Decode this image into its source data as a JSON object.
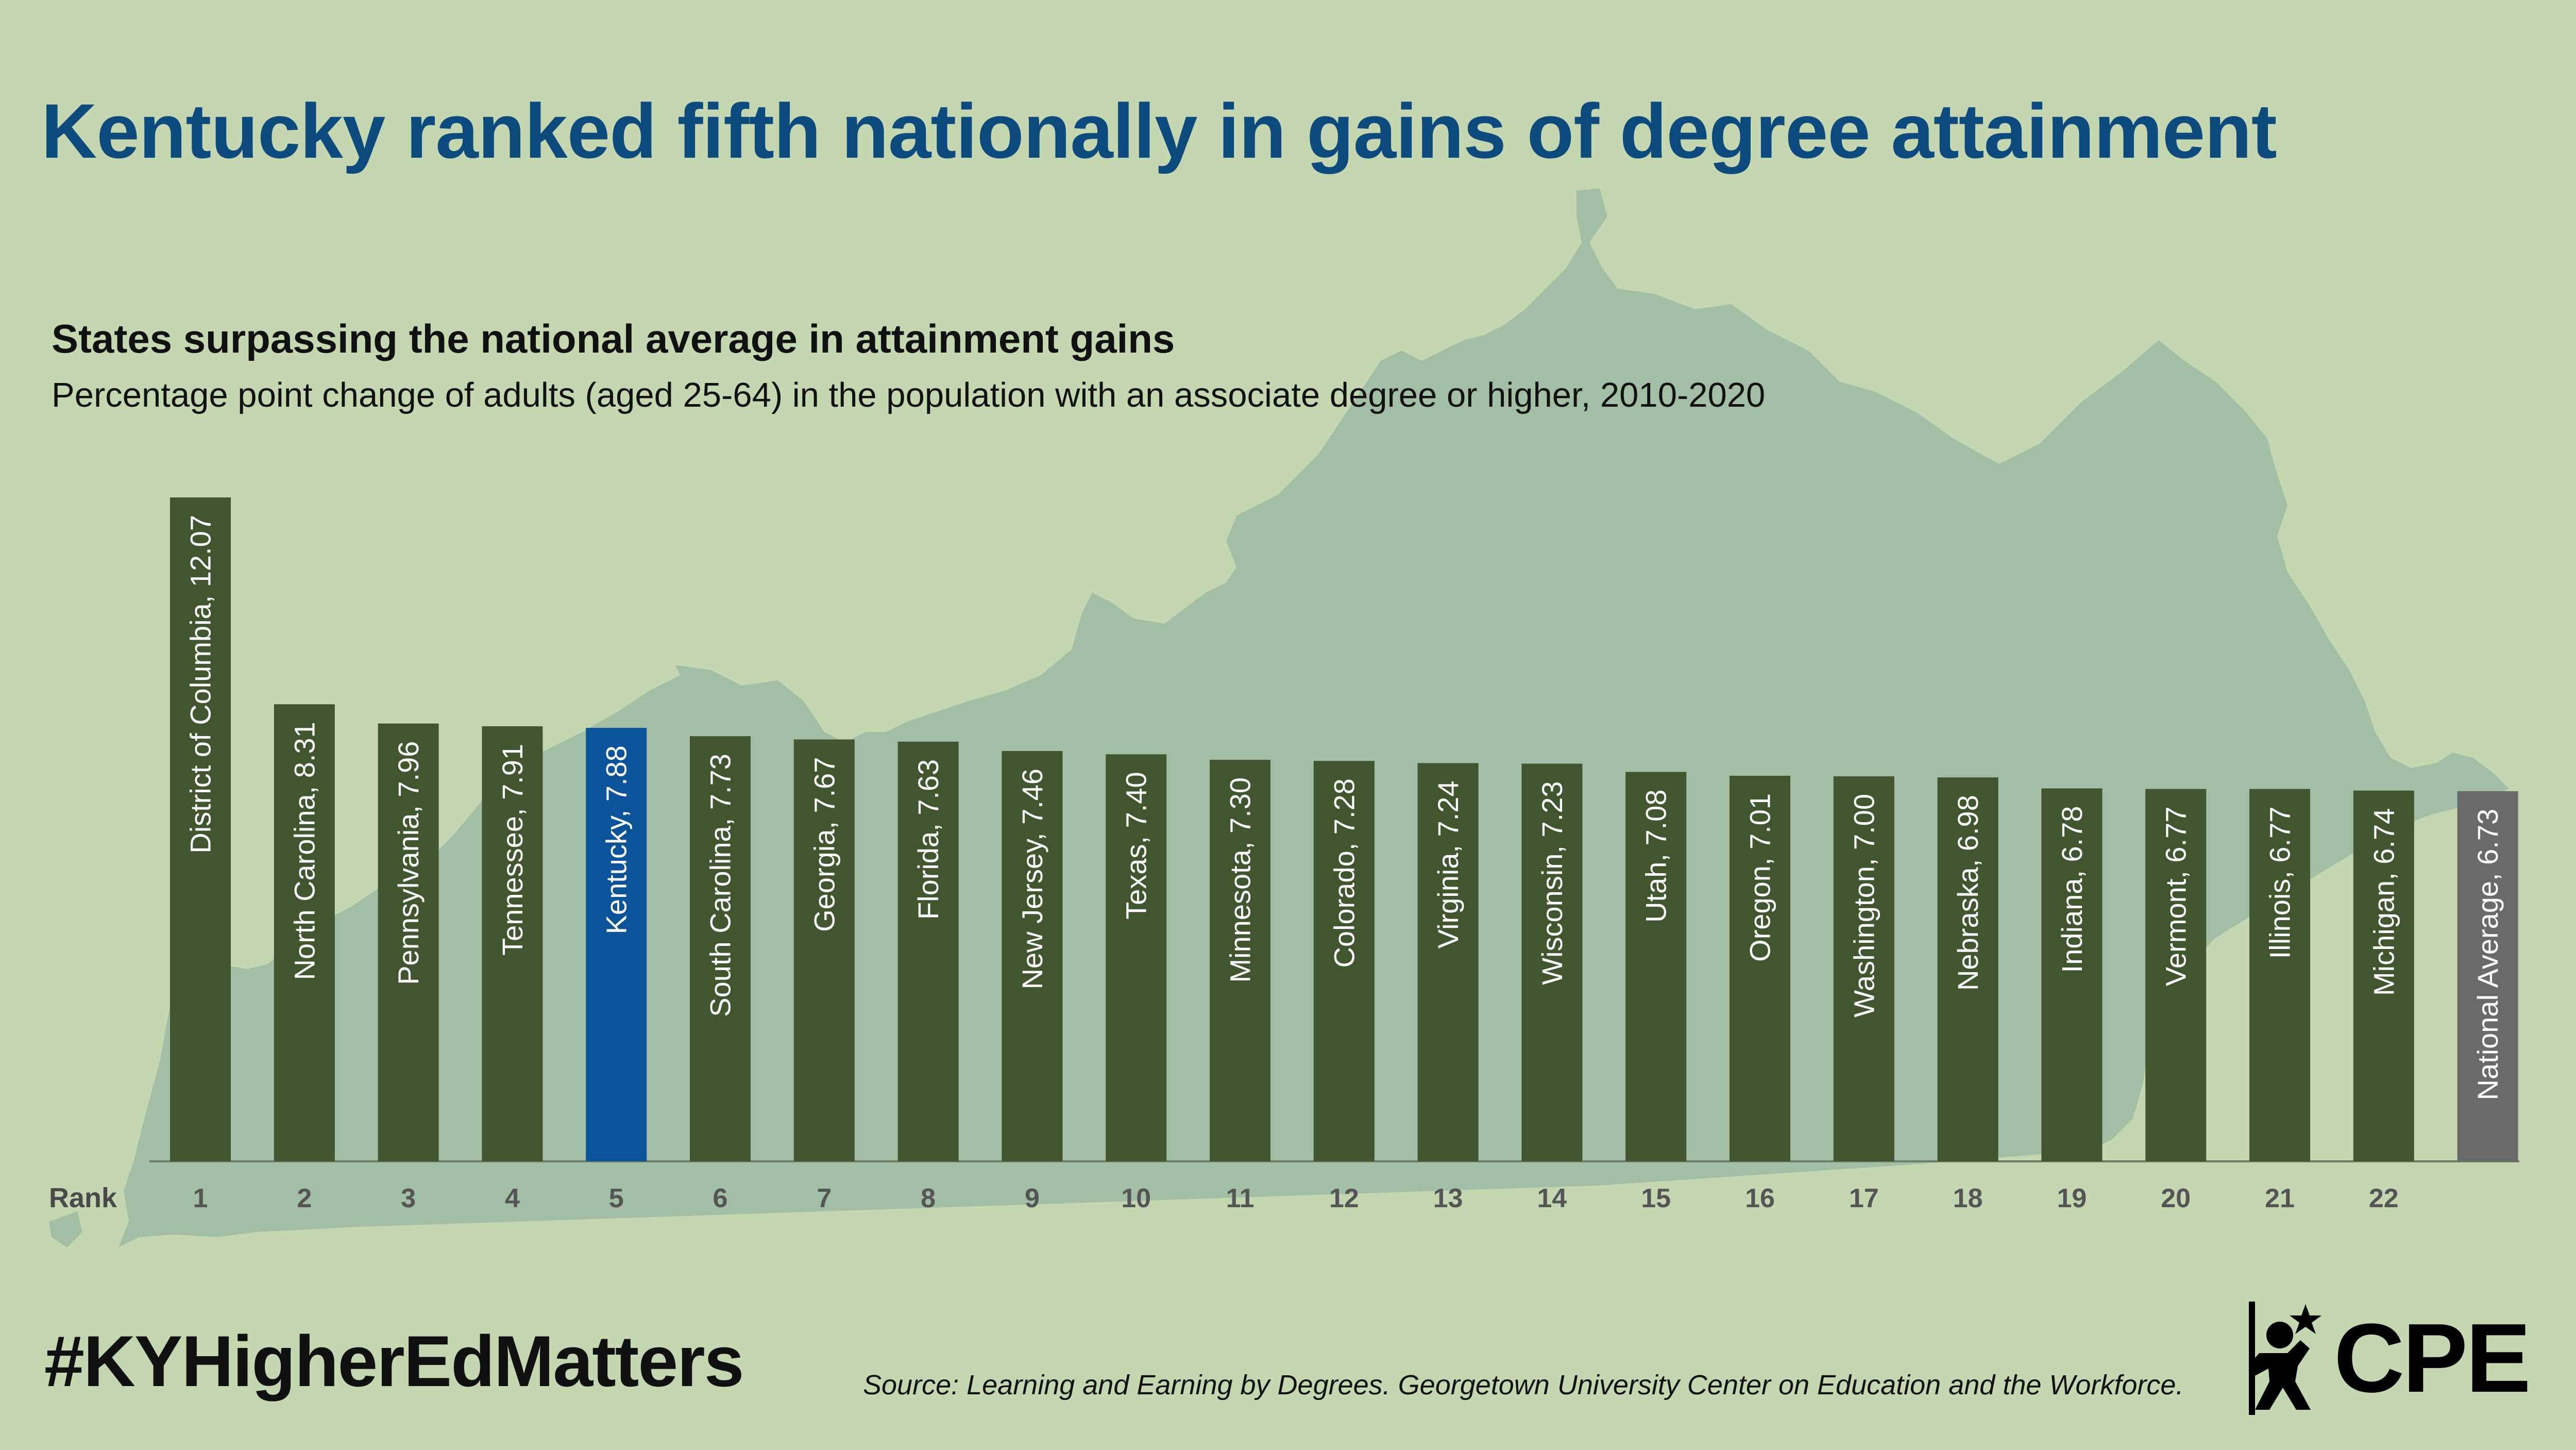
{
  "title": "Kentucky ranked fifth nationally in gains of degree attainment",
  "subtitle": "States surpassing the national average in attainment gains",
  "description": "Percentage point change of adults (aged 25-64) in the population with an associate degree or higher, 2010-2020",
  "hashtag": "#KYHigherEdMatters",
  "source": "Source: Learning and Earning by Degrees. Georgetown University Center on Education and the Workforce.",
  "logo": {
    "text": "CPE",
    "icon": "person-star-icon"
  },
  "colors": {
    "background": "#c4d7b1",
    "state_shape": "#a2bfa6",
    "bar": "#41552f",
    "highlight_bar": "#0b5398",
    "average_bar": "#6a6a6a",
    "title": "#0d4a7d"
  },
  "chart_data": {
    "type": "bar",
    "title": "States surpassing the national average in attainment gains",
    "xlabel": "Rank",
    "ylabel": "",
    "ylim": [
      0,
      12.07
    ],
    "grid": false,
    "highlight": "Kentucky",
    "ranks": [
      "1",
      "2",
      "3",
      "4",
      "5",
      "6",
      "7",
      "8",
      "9",
      "10",
      "11",
      "12",
      "13",
      "14",
      "15",
      "16",
      "17",
      "18",
      "19",
      "20",
      "21",
      "22",
      ""
    ],
    "categories": [
      "District of Columbia",
      "North Carolina",
      "Pennsylvania",
      "Tennessee",
      "Kentucky",
      "South Carolina",
      "Georgia",
      "Florida",
      "New Jersey",
      "Texas",
      "Minnesota",
      "Colorado",
      "Virginia",
      "Wisconsin",
      "Utah",
      "Oregon",
      "Washington",
      "Nebraska",
      "Indiana",
      "Vermont",
      "Illinois",
      "Michigan",
      "National Average"
    ],
    "labels": [
      "District of Columbia, 12.07",
      "North Carolina, 8.31",
      "Pennsylvania, 7.96",
      "Tennessee, 7.91",
      "Kentucky, 7.88",
      "South Carolina, 7.73",
      "Georgia, 7.67",
      "Florida, 7.63",
      "New Jersey, 7.46",
      "Texas, 7.40",
      "Minnesota, 7.30",
      "Colorado, 7.28",
      "Virginia, 7.24",
      "Wisconsin, 7.23",
      "Utah, 7.08",
      "Oregon, 7.01",
      "Washington, 7.00",
      "Nebraska, 6.98",
      "Indiana, 6.78",
      "Vermont, 6.77",
      "Illinois, 6.77",
      "Michigan, 6.74",
      "National Average, 6.73"
    ],
    "values": [
      12.07,
      8.31,
      7.96,
      7.91,
      7.88,
      7.73,
      7.67,
      7.63,
      7.46,
      7.4,
      7.3,
      7.28,
      7.24,
      7.23,
      7.08,
      7.01,
      7.0,
      6.98,
      6.78,
      6.77,
      6.77,
      6.74,
      6.73
    ]
  }
}
